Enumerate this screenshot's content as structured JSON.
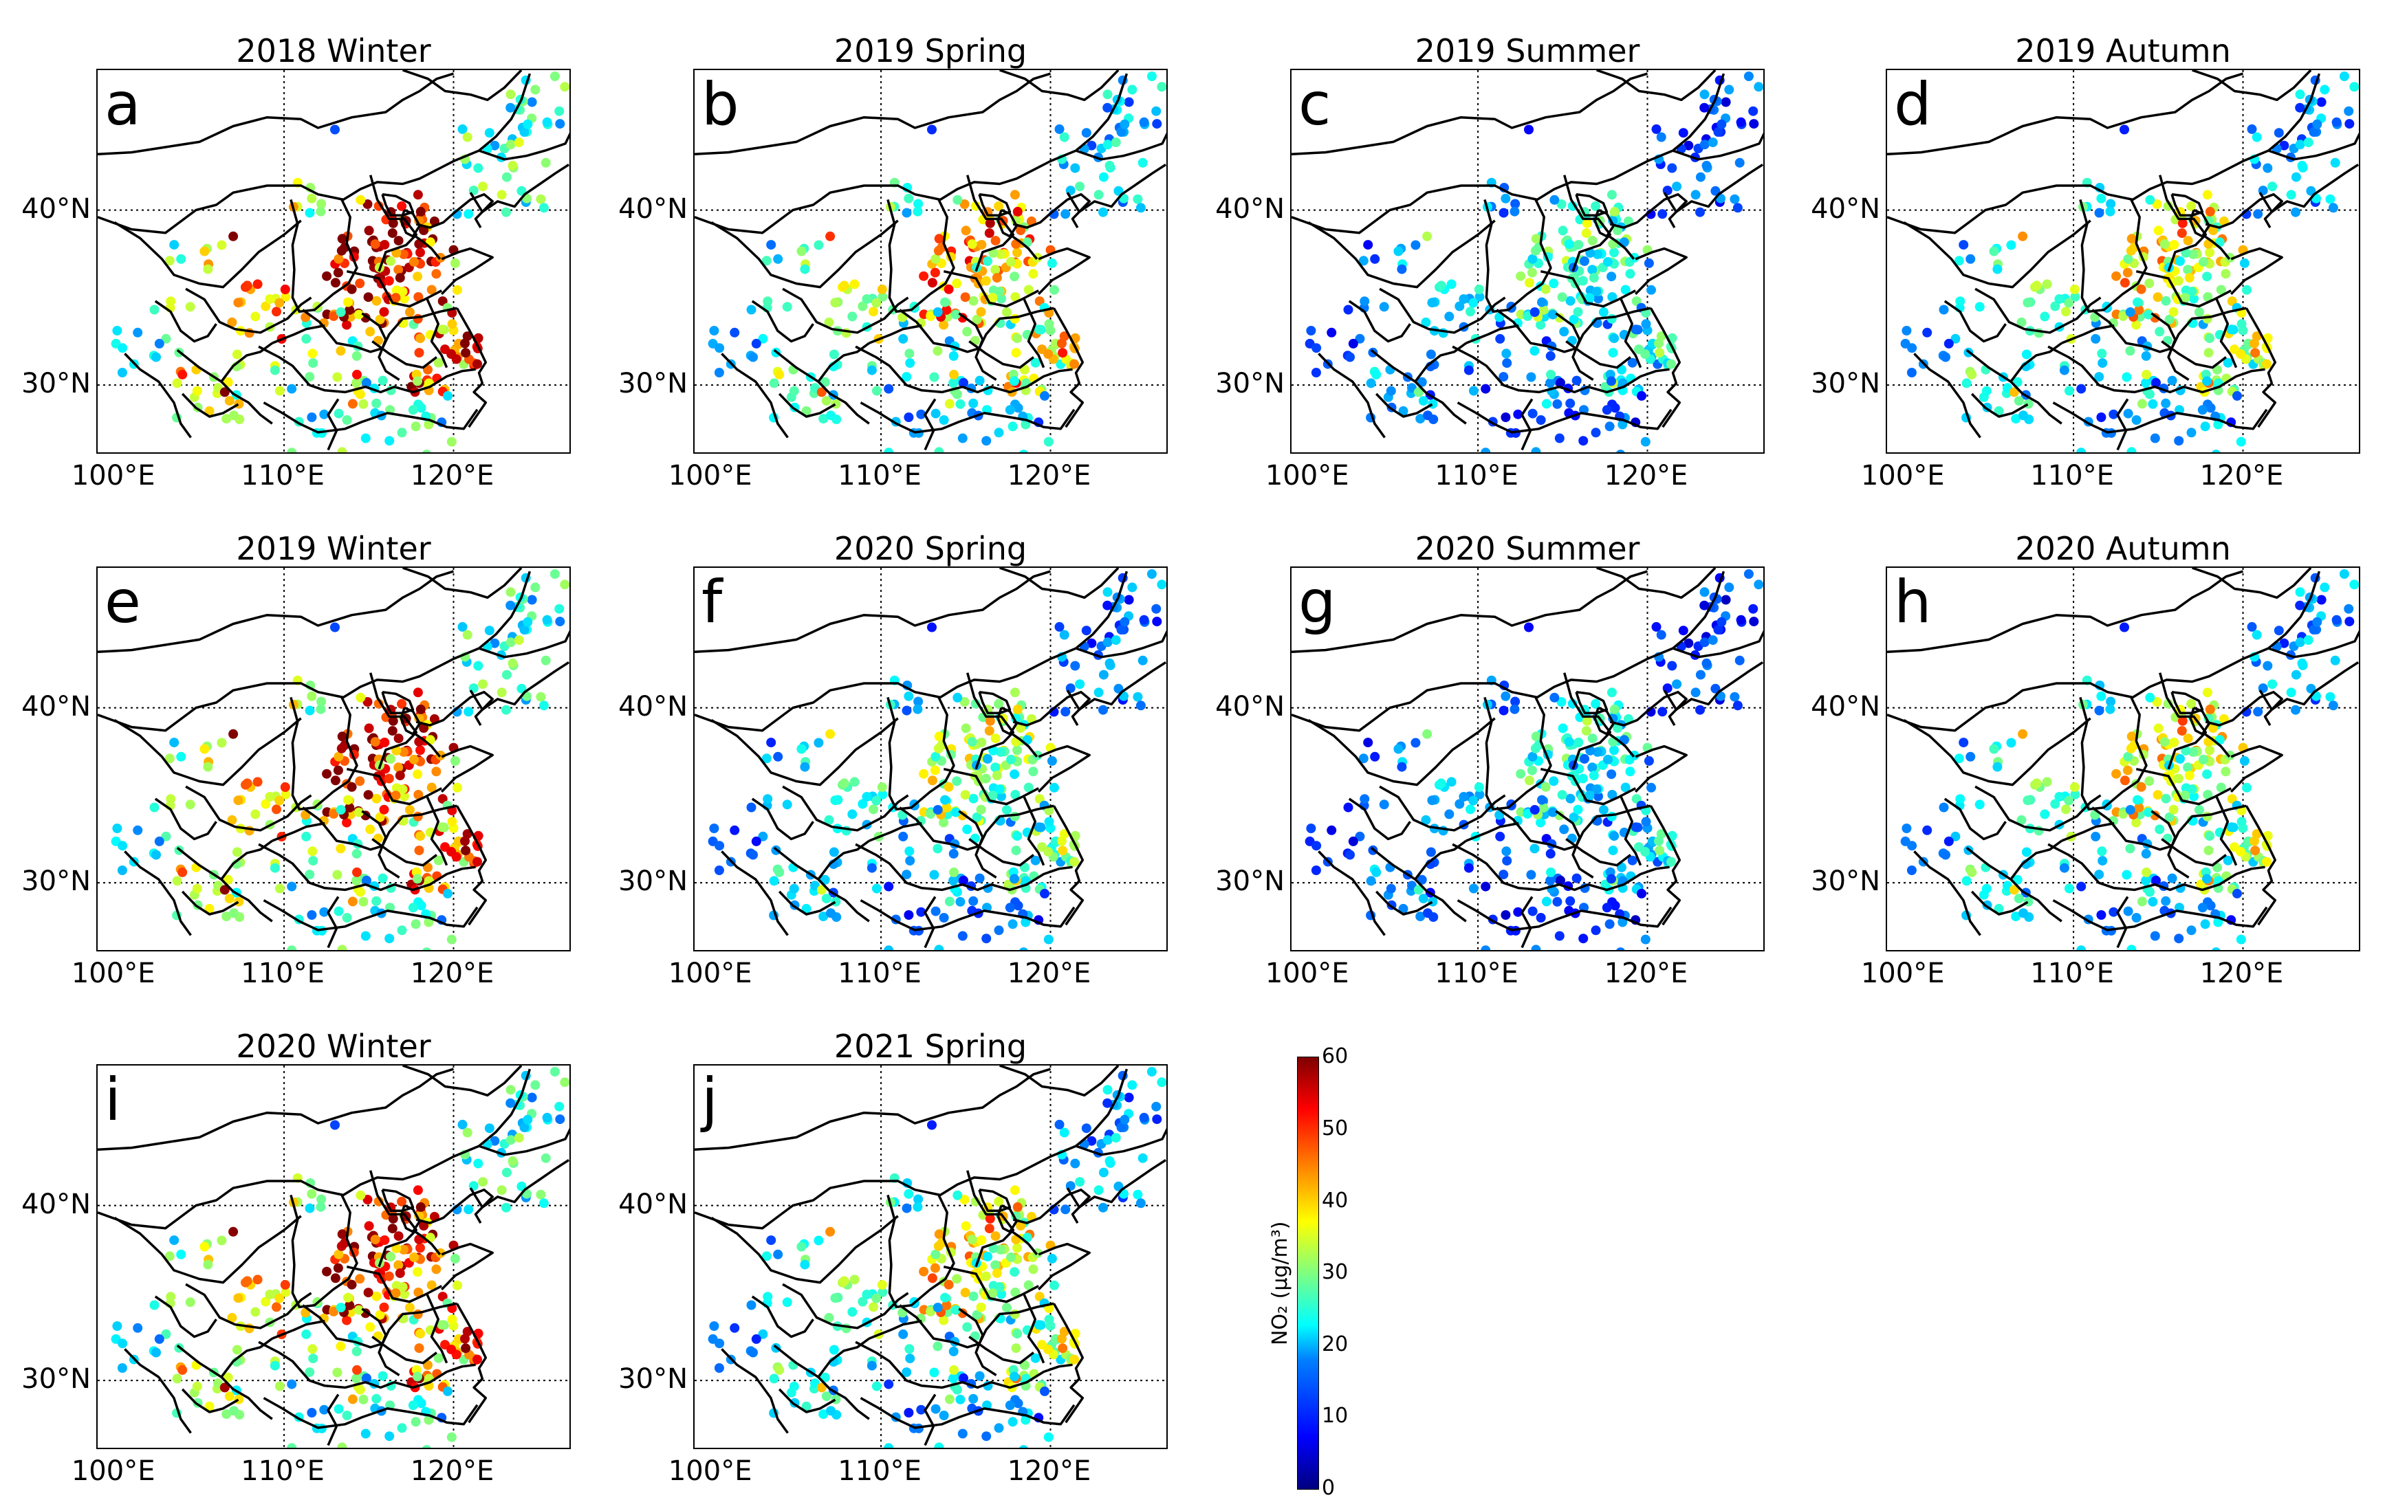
{
  "figure": {
    "lat_labels": [
      "40°N",
      "30°N"
    ],
    "lon_labels": [
      "100°E",
      "110°E",
      "120°E"
    ],
    "extent": {
      "lon_min": 99,
      "lon_max": 127,
      "lat_min": 26,
      "lat_max": 48
    },
    "gridlines": {
      "lon": [
        110,
        120
      ],
      "lat": [
        40,
        30
      ]
    },
    "panels": [
      {
        "letter": "a",
        "title": "2018 Winter",
        "level": 42
      },
      {
        "letter": "b",
        "title": "2019 Spring",
        "level": 32
      },
      {
        "letter": "c",
        "title": "2019 Summer",
        "level": 20
      },
      {
        "letter": "d",
        "title": "2019 Autumn",
        "level": 28
      },
      {
        "letter": "e",
        "title": "2019 Winter",
        "level": 40
      },
      {
        "letter": "f",
        "title": "2020 Spring",
        "level": 24
      },
      {
        "letter": "g",
        "title": "2020 Summer",
        "level": 18
      },
      {
        "letter": "h",
        "title": "2020 Autumn",
        "level": 27
      },
      {
        "letter": "i",
        "title": "2020 Winter",
        "level": 39
      },
      {
        "letter": "j",
        "title": "2021 Spring",
        "level": 28
      }
    ]
  },
  "colorbar": {
    "label": "NO₂ (μg/m³)",
    "min": 0,
    "max": 60,
    "ticks": [
      "0",
      "10",
      "20",
      "30",
      "40",
      "50",
      "60"
    ],
    "colormap": [
      "#00007f",
      "#0000ff",
      "#0080ff",
      "#00ffff",
      "#7fff7f",
      "#ffff00",
      "#ff8000",
      "#ff0000",
      "#7f0000"
    ]
  }
}
